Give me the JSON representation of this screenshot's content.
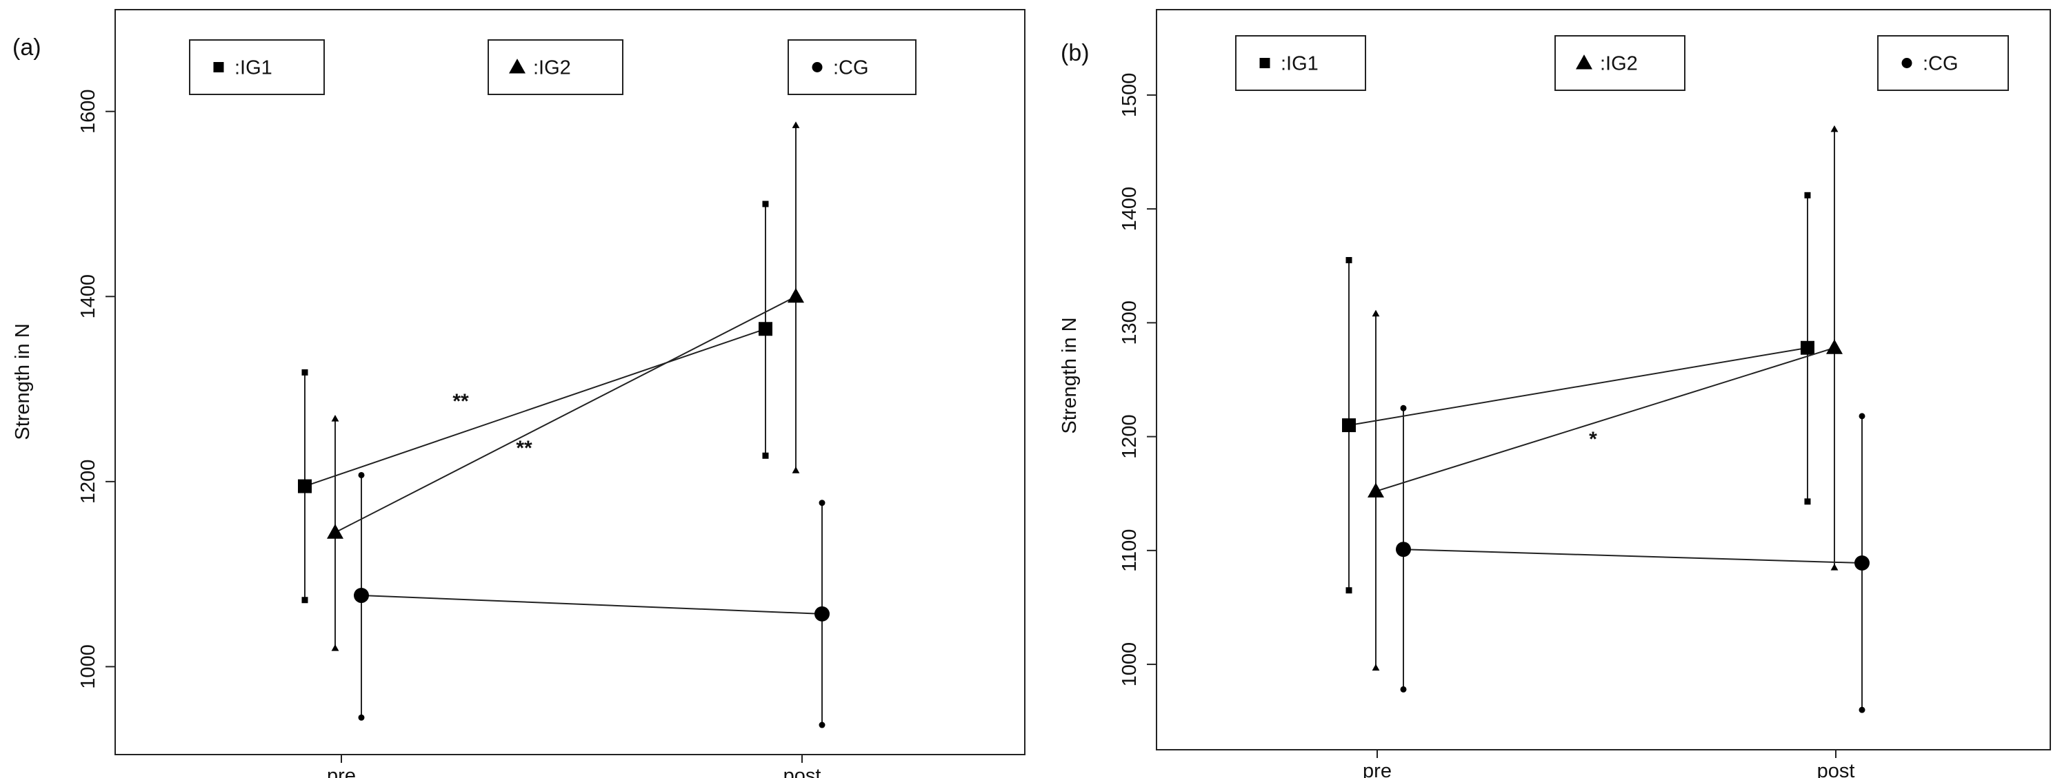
{
  "chart_data": [
    {
      "type": "line",
      "panel_label": "(a)",
      "categories": [
        "pre",
        "post"
      ],
      "ylabel": "Strength in N",
      "ylim": [
        905,
        1710
      ],
      "yticks": [
        1000,
        1200,
        1400,
        1600
      ],
      "grid": false,
      "legend_position": "top",
      "series": [
        {
          "name": ":IG1",
          "marker": "square",
          "values": [
            1195,
            1365
          ],
          "lower": [
            1072,
            1228
          ],
          "upper": [
            1318,
            1500
          ]
        },
        {
          "name": ":IG2",
          "marker": "triangle",
          "values": [
            1145,
            1400
          ],
          "lower": [
            1020,
            1212
          ],
          "upper": [
            1268,
            1585
          ]
        },
        {
          "name": ":CG",
          "marker": "circle",
          "values": [
            1077,
            1057
          ],
          "lower": [
            945,
            937
          ],
          "upper": [
            1207,
            1177
          ]
        }
      ],
      "annotations": [
        {
          "text": "**",
          "position": "between IG1 means"
        },
        {
          "text": "**",
          "position": "between IG2 means"
        }
      ]
    },
    {
      "type": "line",
      "panel_label": "(b)",
      "categories": [
        "pre",
        "post"
      ],
      "ylabel": "Strength in N",
      "ylim": [
        925,
        1575
      ],
      "yticks": [
        1000,
        1100,
        1200,
        1300,
        1400,
        1500
      ],
      "grid": false,
      "legend_position": "top",
      "series": [
        {
          "name": ":IG1",
          "marker": "square",
          "values": [
            1210,
            1278
          ],
          "lower": [
            1065,
            1143
          ],
          "upper": [
            1355,
            1412
          ]
        },
        {
          "name": ":IG2",
          "marker": "triangle",
          "values": [
            1152,
            1278
          ],
          "lower": [
            997,
            1085
          ],
          "upper": [
            1308,
            1470
          ]
        },
        {
          "name": ":CG",
          "marker": "circle",
          "values": [
            1101,
            1089
          ],
          "lower": [
            978,
            960
          ],
          "upper": [
            1225,
            1218
          ]
        }
      ],
      "annotations": [
        {
          "text": "*",
          "position": "between IG2 means"
        }
      ]
    }
  ]
}
